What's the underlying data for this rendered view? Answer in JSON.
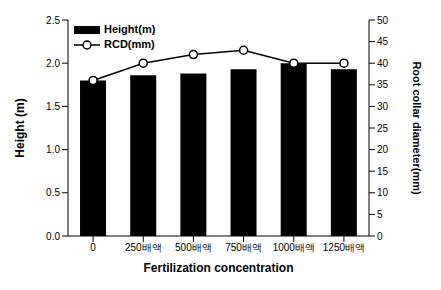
{
  "chart_data": {
    "type": "bar",
    "x_label": "Fertilization concentration",
    "y_label": "Height (m)",
    "y2_label": "Root collar diameter(mm)",
    "categories": [
      "0",
      "250배액",
      "500배액",
      "750배액",
      "1000배액",
      "1250배액"
    ],
    "series": [
      {
        "name": "Height(m)",
        "type": "bar",
        "color": "#000000",
        "values": [
          1.8,
          1.86,
          1.88,
          1.93,
          2.0,
          1.93
        ]
      },
      {
        "name": "RCD(mm)",
        "type": "line",
        "axis": "y2",
        "color": "#000000",
        "marker": "circle",
        "values": [
          36,
          40,
          42,
          43,
          40,
          40
        ]
      }
    ],
    "ylim": [
      0,
      2.5
    ],
    "yticks": [
      {
        "value": 0,
        "label": "0.0"
      },
      0.5,
      {
        "value": 1,
        "label": "1.0"
      },
      1.5,
      {
        "value": 2,
        "label": "2.0"
      },
      2.5
    ],
    "y2lim": [
      0,
      50
    ],
    "y2ticks": [
      0,
      5,
      10,
      15,
      20,
      25,
      30,
      35,
      40,
      45,
      50
    ],
    "grid": false,
    "legend": "upper left"
  }
}
